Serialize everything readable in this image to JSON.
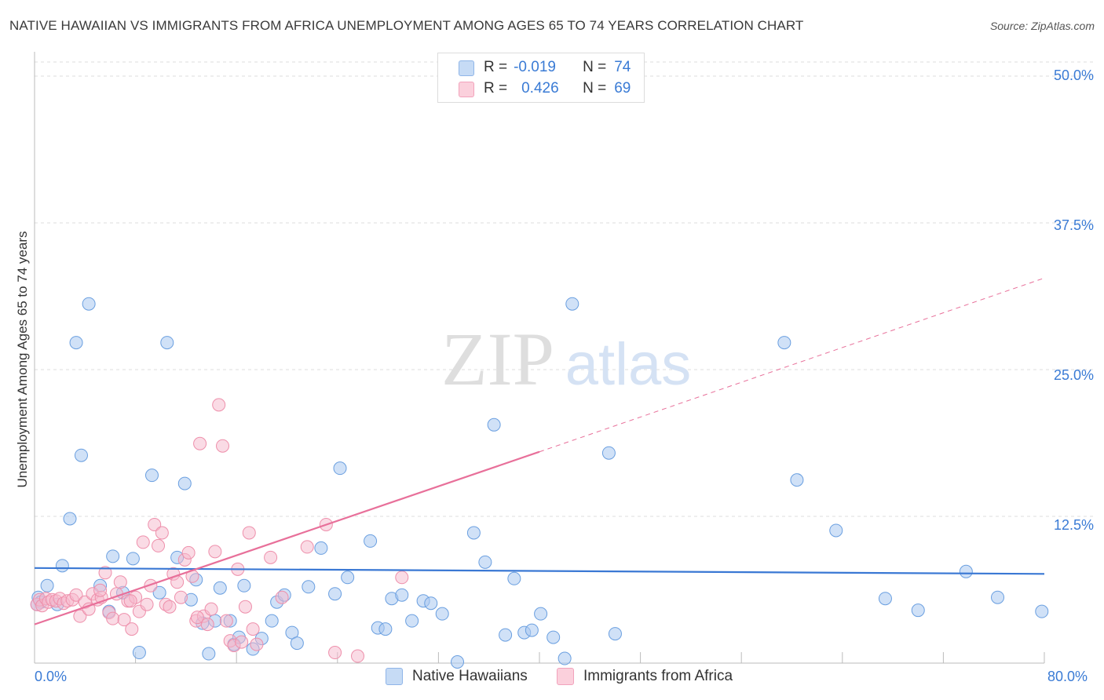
{
  "title": "NATIVE HAWAIIAN VS IMMIGRANTS FROM AFRICA UNEMPLOYMENT AMONG AGES 65 TO 74 YEARS CORRELATION CHART",
  "source": "Source: ZipAtlas.com",
  "watermark": {
    "zip": "ZIP",
    "atlas": "atlas"
  },
  "legend_top": {
    "rows": [
      {
        "r_label": "R =",
        "r_value": "-0.019",
        "n_label": "N =",
        "n_value": "74"
      },
      {
        "r_label": "R =",
        "r_value": "0.426",
        "n_label": "N =",
        "n_value": "69"
      }
    ]
  },
  "colors": {
    "blue_fill": "#a9c8f0",
    "blue_stroke": "#6a9fe0",
    "blue_line": "#3a78d4",
    "pink_fill": "#f6b8cb",
    "pink_stroke": "#ee8fab",
    "pink_line": "#e8709a",
    "tick_text": "#3a7bd5",
    "grid": "#dddddd"
  },
  "chart_data": {
    "type": "scatter",
    "title": "NATIVE HAWAIIAN VS IMMIGRANTS FROM AFRICA UNEMPLOYMENT AMONG AGES 65 TO 74 YEARS CORRELATION CHART",
    "xlabel": "",
    "ylabel": "Unemployment Among Ages 65 to 74 years",
    "xlim": [
      0,
      80
    ],
    "ylim": [
      0,
      50
    ],
    "x_tick_labels": [
      "0.0%",
      "80.0%"
    ],
    "y_ticks": [
      12.5,
      25.0,
      37.5,
      50.0
    ],
    "y_tick_labels": [
      "12.5%",
      "25.0%",
      "37.5%",
      "50.0%"
    ],
    "grid": true,
    "legend": [
      "Native Hawaiians",
      "Immigrants from Africa"
    ],
    "series": [
      {
        "name": "Native Hawaiians",
        "r": -0.019,
        "n": 74,
        "trend": {
          "x0": 0,
          "y0": 8.1,
          "x1": 80,
          "y1": 7.6
        },
        "points": [
          [
            0.3,
            5.6
          ],
          [
            0.5,
            5.2
          ],
          [
            1.0,
            6.6
          ],
          [
            1.8,
            5.0
          ],
          [
            2.2,
            8.3
          ],
          [
            2.8,
            12.3
          ],
          [
            3.3,
            27.3
          ],
          [
            3.7,
            17.7
          ],
          [
            4.3,
            30.6
          ],
          [
            5.2,
            6.6
          ],
          [
            5.9,
            4.4
          ],
          [
            6.2,
            9.1
          ],
          [
            7.0,
            6.0
          ],
          [
            7.8,
            8.9
          ],
          [
            8.3,
            0.9
          ],
          [
            9.3,
            16.0
          ],
          [
            9.9,
            6.0
          ],
          [
            10.5,
            27.3
          ],
          [
            11.3,
            9.0
          ],
          [
            11.9,
            15.3
          ],
          [
            12.4,
            5.4
          ],
          [
            12.8,
            7.1
          ],
          [
            13.3,
            3.4
          ],
          [
            13.8,
            0.8
          ],
          [
            14.3,
            3.6
          ],
          [
            14.7,
            6.4
          ],
          [
            15.5,
            3.6
          ],
          [
            15.8,
            1.6
          ],
          [
            16.2,
            2.2
          ],
          [
            16.6,
            6.6
          ],
          [
            17.3,
            1.2
          ],
          [
            18.0,
            2.1
          ],
          [
            18.8,
            3.6
          ],
          [
            19.2,
            5.2
          ],
          [
            19.8,
            5.8
          ],
          [
            20.4,
            2.6
          ],
          [
            20.8,
            1.7
          ],
          [
            21.7,
            6.5
          ],
          [
            22.7,
            9.8
          ],
          [
            23.8,
            5.9
          ],
          [
            24.2,
            16.6
          ],
          [
            24.8,
            7.3
          ],
          [
            26.6,
            10.4
          ],
          [
            27.2,
            3.0
          ],
          [
            27.8,
            2.9
          ],
          [
            28.3,
            5.5
          ],
          [
            29.1,
            5.8
          ],
          [
            29.9,
            3.6
          ],
          [
            30.8,
            5.3
          ],
          [
            31.4,
            5.1
          ],
          [
            32.3,
            4.2
          ],
          [
            33.5,
            0.1
          ],
          [
            34.8,
            11.1
          ],
          [
            35.7,
            8.6
          ],
          [
            36.4,
            20.3
          ],
          [
            37.3,
            2.4
          ],
          [
            38.0,
            7.2
          ],
          [
            38.8,
            2.6
          ],
          [
            39.4,
            2.8
          ],
          [
            40.1,
            4.2
          ],
          [
            41.1,
            2.2
          ],
          [
            42.0,
            0.4
          ],
          [
            42.6,
            30.6
          ],
          [
            45.5,
            17.9
          ],
          [
            46.0,
            2.5
          ],
          [
            59.4,
            27.3
          ],
          [
            60.4,
            15.6
          ],
          [
            63.5,
            11.3
          ],
          [
            67.4,
            5.5
          ],
          [
            70.0,
            4.5
          ],
          [
            73.8,
            7.8
          ],
          [
            76.3,
            5.6
          ],
          [
            79.8,
            4.4
          ],
          [
            0.2,
            5.0
          ]
        ]
      },
      {
        "name": "Immigrants from Africa",
        "r": 0.426,
        "n": 69,
        "trend": {
          "x0": 0,
          "y0": 3.3,
          "x1": 40,
          "y1": 18.0,
          "dash_x1": 80,
          "dash_y1": 32.8
        },
        "points": [
          [
            0.2,
            5.0
          ],
          [
            0.4,
            5.4
          ],
          [
            0.6,
            4.9
          ],
          [
            0.9,
            5.5
          ],
          [
            1.1,
            5.2
          ],
          [
            1.4,
            5.4
          ],
          [
            1.7,
            5.3
          ],
          [
            2.0,
            5.5
          ],
          [
            2.3,
            5.1
          ],
          [
            2.6,
            5.3
          ],
          [
            3.0,
            5.4
          ],
          [
            3.3,
            5.8
          ],
          [
            3.6,
            4.0
          ],
          [
            4.0,
            5.2
          ],
          [
            4.3,
            4.6
          ],
          [
            4.6,
            5.9
          ],
          [
            5.0,
            5.4
          ],
          [
            5.3,
            5.6
          ],
          [
            5.6,
            7.7
          ],
          [
            5.9,
            4.3
          ],
          [
            6.2,
            3.8
          ],
          [
            6.5,
            5.9
          ],
          [
            6.8,
            6.9
          ],
          [
            7.1,
            3.7
          ],
          [
            7.4,
            5.3
          ],
          [
            7.7,
            2.9
          ],
          [
            8.0,
            5.6
          ],
          [
            8.3,
            4.4
          ],
          [
            8.6,
            10.3
          ],
          [
            8.9,
            5.0
          ],
          [
            9.2,
            6.6
          ],
          [
            9.5,
            11.8
          ],
          [
            9.8,
            10.0
          ],
          [
            10.1,
            11.1
          ],
          [
            10.4,
            5.0
          ],
          [
            10.7,
            4.8
          ],
          [
            11.0,
            7.6
          ],
          [
            11.3,
            6.9
          ],
          [
            11.6,
            5.6
          ],
          [
            11.9,
            8.8
          ],
          [
            12.2,
            9.4
          ],
          [
            12.5,
            7.4
          ],
          [
            12.8,
            3.6
          ],
          [
            13.1,
            18.7
          ],
          [
            13.4,
            4.0
          ],
          [
            13.7,
            3.3
          ],
          [
            14.0,
            4.6
          ],
          [
            14.3,
            9.5
          ],
          [
            14.6,
            22.0
          ],
          [
            14.9,
            18.5
          ],
          [
            15.2,
            3.6
          ],
          [
            15.5,
            1.9
          ],
          [
            15.8,
            1.5
          ],
          [
            16.1,
            8.0
          ],
          [
            16.4,
            1.8
          ],
          [
            16.7,
            4.8
          ],
          [
            17.0,
            11.1
          ],
          [
            17.3,
            2.9
          ],
          [
            17.6,
            1.6
          ],
          [
            18.7,
            9.0
          ],
          [
            19.6,
            5.6
          ],
          [
            21.6,
            9.9
          ],
          [
            23.1,
            11.8
          ],
          [
            23.8,
            0.9
          ],
          [
            25.6,
            0.6
          ],
          [
            29.1,
            7.3
          ],
          [
            7.6,
            5.3
          ],
          [
            12.9,
            3.9
          ],
          [
            5.2,
            6.2
          ]
        ]
      }
    ]
  },
  "x_axis": {
    "left_label": "0.0%",
    "right_label": "80.0%"
  },
  "bottom_legend": {
    "item1": "Native Hawaiians",
    "item2": "Immigrants from Africa"
  }
}
